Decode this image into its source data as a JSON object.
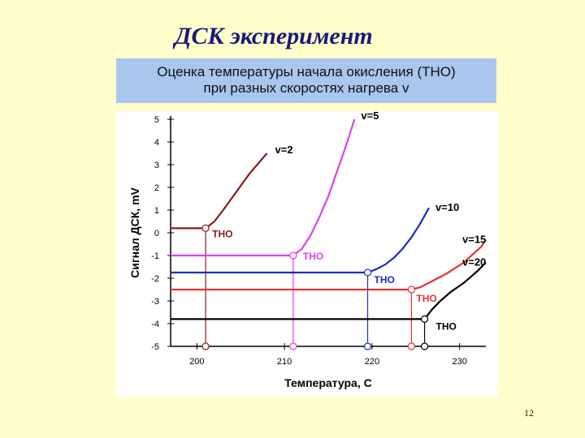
{
  "slide": {
    "title": "ДСК эксперимент",
    "subtitle_line1": "Оценка температуры начала окисления (ТНО)",
    "subtitle_line2": "при разных скоростях нагрева v",
    "page_number": "12"
  },
  "chart_data": {
    "type": "line",
    "title": "",
    "xlabel": "Температура, С",
    "ylabel": "Сигнал ДСК, mV",
    "xlim": [
      197,
      233
    ],
    "ylim": [
      -5,
      5
    ],
    "x_ticks": [
      200,
      210,
      220,
      230
    ],
    "y_ticks": [
      5,
      4,
      3,
      2,
      1,
      0,
      -1,
      -2,
      -3,
      -4,
      -5
    ],
    "grid": false,
    "legend": "none",
    "marker_label": "ТНО",
    "series": [
      {
        "name": "v=2",
        "color": "#8b1a1a",
        "baseline_y": 0.2,
        "tho_x": 201,
        "points": [
          [
            197,
            0.2
          ],
          [
            201,
            0.2
          ],
          [
            202,
            0.5
          ],
          [
            203,
            1.0
          ],
          [
            204.5,
            1.8
          ],
          [
            206,
            2.6
          ],
          [
            208,
            3.5
          ]
        ]
      },
      {
        "name": "v=5",
        "color": "#e040e0",
        "baseline_y": -1,
        "tho_x": 211,
        "points": [
          [
            197,
            -1
          ],
          [
            211,
            -1
          ],
          [
            212,
            -0.7
          ],
          [
            213,
            -0.1
          ],
          [
            214,
            0.7
          ],
          [
            215,
            1.6
          ],
          [
            216,
            2.7
          ],
          [
            217,
            3.8
          ],
          [
            218,
            5.0
          ]
        ]
      },
      {
        "name": "v=10",
        "color": "#1c2fbf",
        "baseline_y": -1.75,
        "tho_x": 219.5,
        "points": [
          [
            197,
            -1.75
          ],
          [
            219.5,
            -1.75
          ],
          [
            220.5,
            -1.6
          ],
          [
            221.5,
            -1.4
          ],
          [
            222.5,
            -1.1
          ],
          [
            223.5,
            -0.7
          ],
          [
            224.5,
            -0.2
          ],
          [
            225.5,
            0.4
          ],
          [
            226.5,
            1.1
          ]
        ]
      },
      {
        "name": "v=15",
        "color": "#e83030",
        "baseline_y": -2.5,
        "tho_x": 224.5,
        "points": [
          [
            197,
            -2.5
          ],
          [
            224.5,
            -2.5
          ],
          [
            225.5,
            -2.4
          ],
          [
            226.5,
            -2.2
          ],
          [
            228.5,
            -1.8
          ],
          [
            230.5,
            -1.3
          ],
          [
            232.5,
            -0.6
          ],
          [
            233,
            -0.3
          ]
        ]
      },
      {
        "name": "v=20",
        "color": "#000000",
        "baseline_y": -3.8,
        "tho_x": 226,
        "points": [
          [
            197,
            -3.8
          ],
          [
            226,
            -3.8
          ],
          [
            226.8,
            -3.4
          ],
          [
            227.8,
            -3.0
          ],
          [
            229,
            -2.6
          ],
          [
            230.5,
            -2.2
          ],
          [
            232,
            -1.7
          ],
          [
            233,
            -1.3
          ]
        ]
      }
    ]
  }
}
